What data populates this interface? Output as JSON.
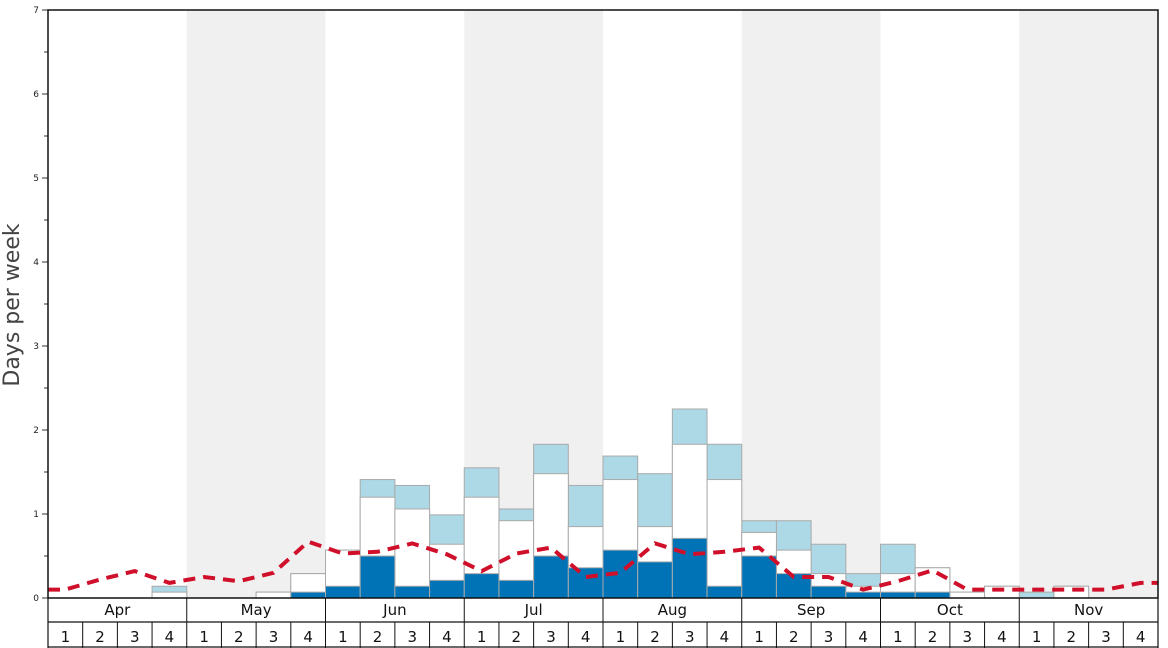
{
  "chart_data": {
    "type": "bar",
    "xlabel": "",
    "ylabel": "Days per week",
    "ylim": [
      0,
      7
    ],
    "yticks": [
      "0",
      "1",
      "2",
      "3",
      "4",
      "5",
      "6",
      "7"
    ],
    "months": [
      "Apr",
      "May",
      "Jun",
      "Jul",
      "Aug",
      "Sep",
      "Oct",
      "Nov"
    ],
    "week_labels": [
      "1",
      "2",
      "3",
      "4"
    ],
    "colors": {
      "top": "#add8e6",
      "middle": "#ffffff",
      "bottom": "#0073b7",
      "line": "#d0102a",
      "band": "#f0f0f0",
      "bar_edge": "#aaaaaa"
    },
    "series": [
      {
        "values": [
          0,
          0,
          0,
          0.14,
          0,
          0,
          0.07,
          0.29,
          0.57,
          1.41,
          1.34,
          0.99,
          1.55,
          1.06,
          1.83,
          1.34,
          1.69,
          1.48,
          2.25,
          1.83,
          0.92,
          0.92,
          0.64,
          0.29,
          0.64,
          0.36,
          0.07,
          0.14,
          0.07,
          0.14,
          0,
          0
        ]
      },
      {
        "values": [
          0,
          0,
          0,
          0.07,
          0,
          0,
          0.07,
          0.29,
          0.57,
          1.2,
          1.06,
          0.64,
          1.2,
          0.92,
          1.48,
          0.85,
          1.41,
          0.85,
          1.83,
          1.41,
          0.78,
          0.57,
          0.29,
          0.14,
          0.29,
          0.36,
          0.07,
          0.14,
          0,
          0.14,
          0,
          0
        ]
      },
      {
        "values": [
          0,
          0,
          0,
          0,
          0,
          0,
          0,
          0.07,
          0.14,
          0.5,
          0.14,
          0.21,
          0.29,
          0.21,
          0.5,
          0.36,
          0.57,
          0.43,
          0.71,
          0.14,
          0.5,
          0.29,
          0.14,
          0.07,
          0.07,
          0.07,
          0,
          0,
          0,
          0,
          0,
          0
        ]
      },
      {
        "values": [
          0.1,
          0.22,
          0.32,
          0.18,
          0.25,
          0.2,
          0.3,
          0.67,
          0.53,
          0.55,
          0.65,
          0.52,
          0.32,
          0.53,
          0.6,
          0.25,
          0.3,
          0.65,
          0.52,
          0.55,
          0.6,
          0.25,
          0.25,
          0.1,
          0.2,
          0.33,
          0.1,
          0.1,
          0.1,
          0.1,
          0.1,
          0.18
        ]
      }
    ]
  }
}
